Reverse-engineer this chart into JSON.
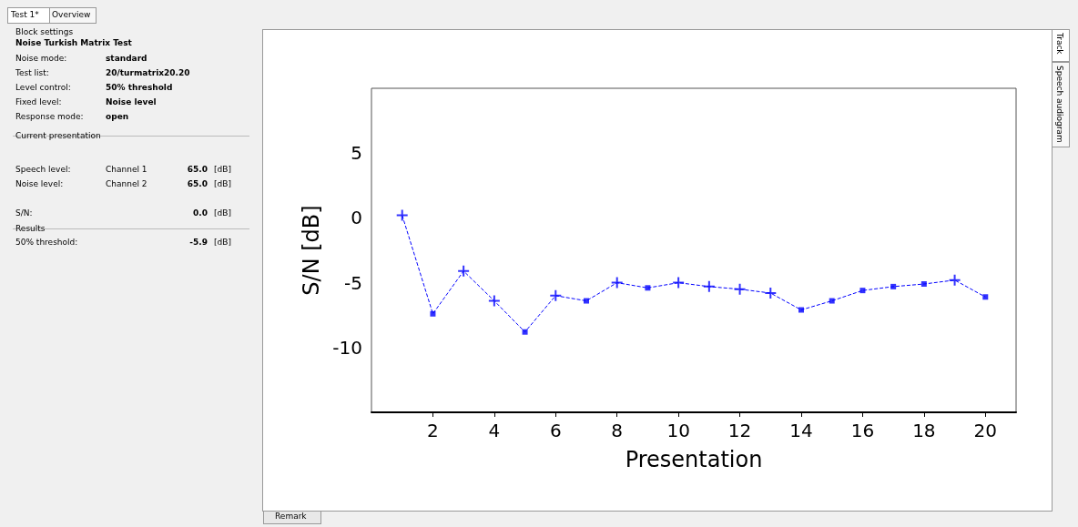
{
  "chart_data": {
    "type": "line",
    "xlabel": "Presentation",
    "ylabel": "S/N [dB]",
    "xlim": [
      0,
      21
    ],
    "xticks": [
      2,
      4,
      6,
      8,
      10,
      12,
      14,
      16,
      18,
      20
    ],
    "ylim": [
      -15,
      10
    ],
    "yticks": [
      -10,
      -5,
      0,
      5
    ],
    "grid": false,
    "series": [
      {
        "color": "#0000ff",
        "line_style": "dashed",
        "marker": "none",
        "x": [
          1,
          2,
          3,
          4,
          5,
          6,
          7,
          8,
          9,
          10,
          11,
          12,
          13,
          14,
          15,
          16,
          17,
          18,
          19,
          20
        ],
        "values": [
          0.2,
          -7.4,
          -4.1,
          -6.4,
          -8.8,
          -6.0,
          -6.4,
          -5.0,
          -5.4,
          -5.0,
          -5.3,
          -5.5,
          -5.8,
          -7.1,
          -6.4,
          -5.6,
          -5.3,
          -5.1,
          -4.8,
          -6.1
        ]
      },
      {
        "type": "scatter",
        "color": "#0000ff",
        "marker": "cross",
        "x": [
          1,
          3,
          4,
          6,
          8,
          10,
          11,
          12,
          13,
          19
        ],
        "values": [
          0.2,
          -4.1,
          -6.4,
          -6.0,
          -5.0,
          -5.0,
          -5.3,
          -5.5,
          -5.8,
          -4.8
        ]
      },
      {
        "type": "scatter",
        "color": "#0000ff",
        "marker": "square",
        "x": [
          2,
          5,
          7,
          9,
          14,
          15,
          16,
          17,
          18,
          20
        ],
        "values": [
          -7.4,
          -8.8,
          -6.4,
          -5.4,
          -7.1,
          -6.4,
          -5.6,
          -5.3,
          -5.1,
          -6.1
        ]
      }
    ],
    "annotations": [
      "Test 1*",
      "Overview",
      "Block settings",
      "Noise Turkish Matrix Test",
      "Noise mode:",
      "standard",
      "Test list:",
      "20/turmatrix20.20",
      "Level control:",
      "50% threshold",
      "Fixed level:",
      "Noise level",
      "Response mode:",
      "open",
      "Current presentation",
      "Speech level:",
      "Channel 1",
      "65.0",
      "[dB]",
      "Noise level:",
      "Channel 2",
      "65.0",
      "[dB]",
      "S/N:",
      "0.0",
      "[dB]",
      "Results",
      "50% threshold:",
      "-5.9",
      "[dB]",
      "Track",
      "Speech audiogram",
      "Remark"
    ]
  }
}
